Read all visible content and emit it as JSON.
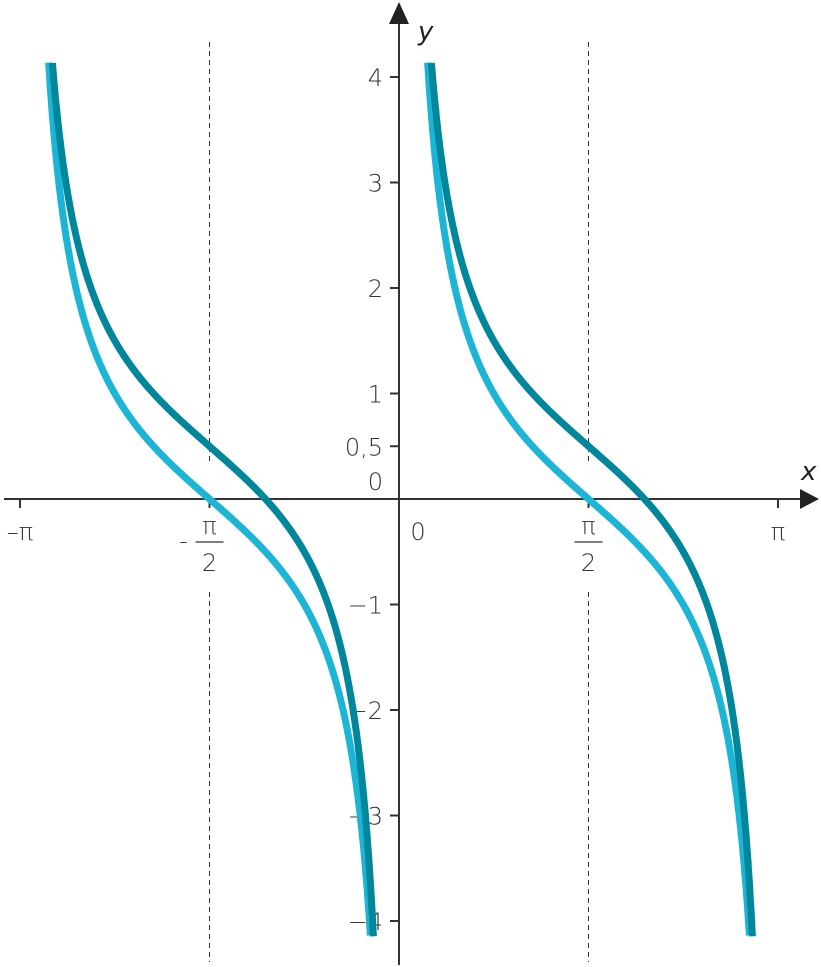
{
  "chart_data": {
    "type": "line",
    "xlabel": "x",
    "ylabel": "y",
    "xlim": [
      -3.1416,
      3.1416
    ],
    "ylim": [
      -4.15,
      4.15
    ],
    "x_ticks": [
      {
        "value": -3.1416,
        "label": "–π"
      },
      {
        "value": -1.5708,
        "label": "-π/2",
        "num": "π",
        "den": "2",
        "sign": "-"
      },
      {
        "value": 0,
        "label": "0"
      },
      {
        "value": 1.5708,
        "label": "π/2",
        "num": "π",
        "den": "2"
      },
      {
        "value": 3.1416,
        "label": "π"
      }
    ],
    "y_ticks": [
      {
        "value": 4,
        "label": "4"
      },
      {
        "value": 3,
        "label": "3"
      },
      {
        "value": 2,
        "label": "2"
      },
      {
        "value": 1,
        "label": "1"
      },
      {
        "value": 0.5,
        "label": "0,5"
      },
      {
        "value": 0,
        "label": "0"
      },
      {
        "value": -1,
        "label": "−1"
      },
      {
        "value": -2,
        "label": "−2"
      },
      {
        "value": -3,
        "label": "−3"
      },
      {
        "value": -4,
        "label": "−4"
      }
    ],
    "asymptotes_dashed": [
      -1.5708,
      1.5708
    ],
    "series": [
      {
        "function": "cot(x)",
        "color": "#1cb5d6"
      },
      {
        "function": "cot(x)+0.5",
        "color": "#00879b"
      }
    ],
    "grid": false
  }
}
